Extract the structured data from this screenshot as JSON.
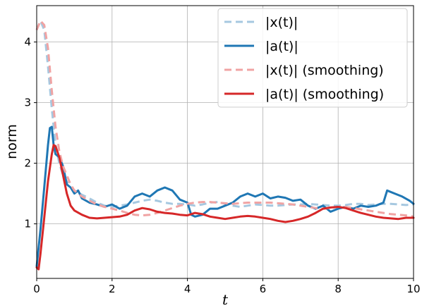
{
  "chart_data": {
    "type": "line",
    "xlabel": "t",
    "ylabel": "norm",
    "xlim": [
      0,
      10
    ],
    "ylim": [
      0.1,
      4.6
    ],
    "x_ticks": [
      0,
      2,
      4,
      6,
      8,
      10
    ],
    "y_ticks": [
      1,
      2,
      3,
      4
    ],
    "grid": true,
    "legend_position": "top-right",
    "series": [
      {
        "name": "|x(t)|",
        "color": "#a6c8e0",
        "style": "dashed",
        "points": [
          [
            0,
            4.2
          ],
          [
            0.1,
            4.35
          ],
          [
            0.2,
            4.2
          ],
          [
            0.3,
            3.6
          ],
          [
            0.4,
            2.9
          ],
          [
            0.5,
            2.3
          ],
          [
            0.6,
            2.0
          ],
          [
            0.7,
            1.8
          ],
          [
            0.8,
            1.7
          ],
          [
            0.9,
            1.6
          ],
          [
            1.0,
            1.55
          ],
          [
            1.2,
            1.48
          ],
          [
            1.4,
            1.42
          ],
          [
            1.6,
            1.35
          ],
          [
            1.8,
            1.3
          ],
          [
            2.0,
            1.28
          ],
          [
            2.2,
            1.3
          ],
          [
            2.4,
            1.32
          ],
          [
            2.6,
            1.35
          ],
          [
            2.8,
            1.38
          ],
          [
            3.0,
            1.4
          ],
          [
            3.2,
            1.38
          ],
          [
            3.4,
            1.35
          ],
          [
            3.6,
            1.33
          ],
          [
            3.8,
            1.33
          ],
          [
            4.0,
            1.32
          ],
          [
            4.2,
            1.3
          ],
          [
            4.4,
            1.32
          ],
          [
            4.6,
            1.35
          ],
          [
            4.8,
            1.36
          ],
          [
            5.0,
            1.33
          ],
          [
            5.2,
            1.3
          ],
          [
            5.4,
            1.28
          ],
          [
            5.6,
            1.3
          ],
          [
            5.8,
            1.32
          ],
          [
            6.0,
            1.31
          ],
          [
            6.2,
            1.3
          ],
          [
            6.4,
            1.3
          ],
          [
            6.6,
            1.31
          ],
          [
            6.8,
            1.32
          ],
          [
            7.0,
            1.32
          ],
          [
            7.2,
            1.33
          ],
          [
            7.4,
            1.32
          ],
          [
            7.6,
            1.31
          ],
          [
            7.8,
            1.3
          ],
          [
            8.0,
            1.3
          ],
          [
            8.2,
            1.31
          ],
          [
            8.4,
            1.33
          ],
          [
            8.6,
            1.33
          ],
          [
            8.8,
            1.31
          ],
          [
            9.0,
            1.32
          ],
          [
            9.2,
            1.33
          ],
          [
            9.4,
            1.33
          ],
          [
            9.6,
            1.32
          ],
          [
            9.8,
            1.31
          ],
          [
            10.0,
            1.32
          ]
        ]
      },
      {
        "name": "|a(t)|",
        "color": "#1f77b4",
        "style": "solid",
        "points": [
          [
            0,
            0.3
          ],
          [
            0.1,
            0.9
          ],
          [
            0.2,
            1.6
          ],
          [
            0.3,
            2.3
          ],
          [
            0.35,
            2.58
          ],
          [
            0.4,
            2.6
          ],
          [
            0.45,
            2.3
          ],
          [
            0.5,
            2.15
          ],
          [
            0.6,
            2.1
          ],
          [
            0.7,
            1.95
          ],
          [
            0.8,
            1.65
          ],
          [
            0.9,
            1.6
          ],
          [
            1.0,
            1.5
          ],
          [
            1.1,
            1.55
          ],
          [
            1.2,
            1.42
          ],
          [
            1.4,
            1.35
          ],
          [
            1.6,
            1.32
          ],
          [
            1.8,
            1.28
          ],
          [
            2.0,
            1.32
          ],
          [
            2.2,
            1.25
          ],
          [
            2.4,
            1.3
          ],
          [
            2.6,
            1.45
          ],
          [
            2.8,
            1.5
          ],
          [
            3.0,
            1.45
          ],
          [
            3.2,
            1.55
          ],
          [
            3.4,
            1.6
          ],
          [
            3.6,
            1.55
          ],
          [
            3.8,
            1.4
          ],
          [
            4.0,
            1.35
          ],
          [
            4.1,
            1.15
          ],
          [
            4.2,
            1.12
          ],
          [
            4.4,
            1.15
          ],
          [
            4.6,
            1.25
          ],
          [
            4.8,
            1.25
          ],
          [
            5.0,
            1.3
          ],
          [
            5.2,
            1.35
          ],
          [
            5.4,
            1.45
          ],
          [
            5.6,
            1.5
          ],
          [
            5.8,
            1.45
          ],
          [
            6.0,
            1.5
          ],
          [
            6.2,
            1.42
          ],
          [
            6.4,
            1.45
          ],
          [
            6.6,
            1.43
          ],
          [
            6.8,
            1.38
          ],
          [
            7.0,
            1.4
          ],
          [
            7.2,
            1.3
          ],
          [
            7.4,
            1.25
          ],
          [
            7.6,
            1.3
          ],
          [
            7.8,
            1.2
          ],
          [
            8.0,
            1.25
          ],
          [
            8.2,
            1.28
          ],
          [
            8.4,
            1.25
          ],
          [
            8.6,
            1.3
          ],
          [
            8.8,
            1.28
          ],
          [
            9.0,
            1.3
          ],
          [
            9.2,
            1.35
          ],
          [
            9.3,
            1.55
          ],
          [
            9.5,
            1.5
          ],
          [
            9.7,
            1.45
          ],
          [
            9.9,
            1.38
          ],
          [
            10.0,
            1.33
          ]
        ]
      },
      {
        "name": "|x(t)| (smoothing)",
        "color": "#f0a3a3",
        "style": "dashed",
        "points": [
          [
            0,
            4.2
          ],
          [
            0.1,
            4.35
          ],
          [
            0.2,
            4.28
          ],
          [
            0.3,
            3.9
          ],
          [
            0.4,
            3.2
          ],
          [
            0.5,
            2.6
          ],
          [
            0.6,
            2.2
          ],
          [
            0.7,
            1.95
          ],
          [
            0.8,
            1.8
          ],
          [
            0.9,
            1.65
          ],
          [
            1.0,
            1.55
          ],
          [
            1.2,
            1.45
          ],
          [
            1.4,
            1.38
          ],
          [
            1.6,
            1.32
          ],
          [
            1.8,
            1.28
          ],
          [
            2.0,
            1.25
          ],
          [
            2.2,
            1.22
          ],
          [
            2.4,
            1.18
          ],
          [
            2.6,
            1.15
          ],
          [
            2.8,
            1.14
          ],
          [
            3.0,
            1.15
          ],
          [
            3.2,
            1.18
          ],
          [
            3.4,
            1.22
          ],
          [
            3.6,
            1.26
          ],
          [
            3.8,
            1.3
          ],
          [
            4.0,
            1.33
          ],
          [
            4.2,
            1.35
          ],
          [
            4.4,
            1.36
          ],
          [
            4.6,
            1.36
          ],
          [
            4.8,
            1.35
          ],
          [
            5.0,
            1.34
          ],
          [
            5.2,
            1.33
          ],
          [
            5.4,
            1.34
          ],
          [
            5.6,
            1.35
          ],
          [
            5.8,
            1.35
          ],
          [
            6.0,
            1.35
          ],
          [
            6.2,
            1.35
          ],
          [
            6.4,
            1.34
          ],
          [
            6.6,
            1.33
          ],
          [
            6.8,
            1.32
          ],
          [
            7.0,
            1.3
          ],
          [
            7.2,
            1.28
          ],
          [
            7.4,
            1.26
          ],
          [
            7.6,
            1.25
          ],
          [
            7.8,
            1.26
          ],
          [
            8.0,
            1.28
          ],
          [
            8.2,
            1.28
          ],
          [
            8.4,
            1.26
          ],
          [
            8.6,
            1.24
          ],
          [
            8.8,
            1.22
          ],
          [
            9.0,
            1.2
          ],
          [
            9.2,
            1.18
          ],
          [
            9.4,
            1.16
          ],
          [
            9.6,
            1.15
          ],
          [
            9.8,
            1.14
          ],
          [
            10.0,
            1.12
          ]
        ]
      },
      {
        "name": "|a(t)| (smoothing)",
        "color": "#d62728",
        "style": "solid",
        "points": [
          [
            0,
            0.28
          ],
          [
            0.05,
            0.25
          ],
          [
            0.1,
            0.5
          ],
          [
            0.2,
            1.1
          ],
          [
            0.3,
            1.7
          ],
          [
            0.4,
            2.15
          ],
          [
            0.45,
            2.3
          ],
          [
            0.5,
            2.28
          ],
          [
            0.6,
            2.1
          ],
          [
            0.7,
            1.8
          ],
          [
            0.8,
            1.5
          ],
          [
            0.9,
            1.3
          ],
          [
            1.0,
            1.22
          ],
          [
            1.2,
            1.15
          ],
          [
            1.4,
            1.1
          ],
          [
            1.6,
            1.09
          ],
          [
            1.8,
            1.1
          ],
          [
            2.0,
            1.11
          ],
          [
            2.2,
            1.12
          ],
          [
            2.4,
            1.15
          ],
          [
            2.6,
            1.22
          ],
          [
            2.8,
            1.26
          ],
          [
            3.0,
            1.24
          ],
          [
            3.2,
            1.2
          ],
          [
            3.4,
            1.18
          ],
          [
            3.6,
            1.17
          ],
          [
            3.8,
            1.15
          ],
          [
            4.0,
            1.14
          ],
          [
            4.2,
            1.18
          ],
          [
            4.4,
            1.16
          ],
          [
            4.6,
            1.12
          ],
          [
            4.8,
            1.1
          ],
          [
            5.0,
            1.08
          ],
          [
            5.2,
            1.1
          ],
          [
            5.4,
            1.12
          ],
          [
            5.6,
            1.13
          ],
          [
            5.8,
            1.12
          ],
          [
            6.0,
            1.1
          ],
          [
            6.2,
            1.08
          ],
          [
            6.4,
            1.05
          ],
          [
            6.6,
            1.03
          ],
          [
            6.8,
            1.05
          ],
          [
            7.0,
            1.08
          ],
          [
            7.2,
            1.12
          ],
          [
            7.4,
            1.18
          ],
          [
            7.6,
            1.25
          ],
          [
            7.8,
            1.27
          ],
          [
            8.0,
            1.28
          ],
          [
            8.2,
            1.26
          ],
          [
            8.4,
            1.22
          ],
          [
            8.6,
            1.18
          ],
          [
            8.8,
            1.15
          ],
          [
            9.0,
            1.12
          ],
          [
            9.2,
            1.1
          ],
          [
            9.4,
            1.09
          ],
          [
            9.6,
            1.08
          ],
          [
            9.8,
            1.1
          ],
          [
            10.0,
            1.1
          ]
        ]
      }
    ]
  }
}
